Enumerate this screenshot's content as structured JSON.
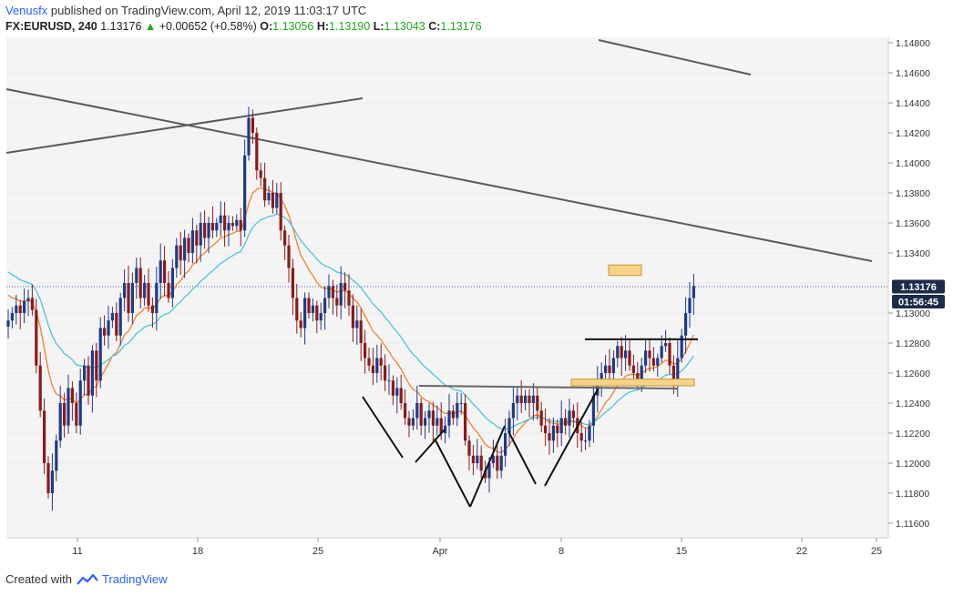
{
  "header": {
    "author": "Venusfx",
    "published_text": "published on TradingView.com, April 12, 2019 11:03:17 UTC",
    "symbol": "FX:EURUSD, 240",
    "last": "1.13176",
    "change_arrow": "▲",
    "change": "+0.00652 (+0.58%)",
    "o_label": "O:",
    "o_value": "1.13056",
    "h_label": "H:",
    "h_value": "1.13190",
    "l_label": "L:",
    "l_value": "1.13043",
    "c_label": "C:",
    "c_value": "1.13176"
  },
  "footer": {
    "created_with": "Created with",
    "brand": "TradingView",
    "logo_icon": "tradingview-logo-icon"
  },
  "price_axis": {
    "tick_labels": [
      "1.14800",
      "1.14600",
      "1.14400",
      "1.14200",
      "1.14000",
      "1.13800",
      "1.13600",
      "1.13400",
      "1.13176",
      "1.13000",
      "1.12800",
      "1.12600",
      "1.12400",
      "1.12200",
      "1.12000",
      "1.11800",
      "1.11600"
    ],
    "current_price_label": "1.13176",
    "countdown_label": "01:56:45"
  },
  "time_axis": {
    "tick_labels": [
      "11",
      "18",
      "25",
      "Apr",
      "8",
      "15",
      "22",
      "25"
    ]
  },
  "colors": {
    "up_candle": "#1e3a8a",
    "down_candle": "#8b1a1a",
    "ema_fast": "#f57f2a",
    "ema_slow": "#4fc3d9",
    "trendline": "#5a5a5a",
    "zone": "#f6d28a",
    "price_label_bg": "#1c2b4a",
    "plot_bg": "#f4f4f4"
  },
  "chart_data": {
    "type": "candlestick",
    "symbol": "EURUSD",
    "timeframe": "240",
    "ylim": [
      1.115,
      1.149
    ],
    "x_range_days": [
      "2019-03-07",
      "2019-03-26"
    ],
    "x_ticks": [
      {
        "label": "11",
        "date": "2019-03-11"
      },
      {
        "label": "18",
        "date": "2019-03-18"
      },
      {
        "label": "25",
        "date": "2019-03-25"
      },
      {
        "label": "Apr",
        "date": "2019-04-01"
      },
      {
        "label": "8",
        "date": "2019-04-08"
      },
      {
        "label": "15",
        "date": "2019-04-15"
      },
      {
        "label": "22",
        "date": "2019-04-22"
      },
      {
        "label": "25",
        "date": "2019-04-25"
      }
    ],
    "close_path": [
      [
        0,
        1.1295
      ],
      [
        1,
        1.13
      ],
      [
        2,
        1.1305
      ],
      [
        3,
        1.13
      ],
      [
        4,
        1.1308
      ],
      [
        5,
        1.131
      ],
      [
        6,
        1.1302
      ],
      [
        7,
        1.1265
      ],
      [
        8,
        1.1235
      ],
      [
        9,
        1.12
      ],
      [
        10,
        1.118
      ],
      [
        11,
        1.1195
      ],
      [
        12,
        1.1215
      ],
      [
        13,
        1.124
      ],
      [
        14,
        1.1225
      ],
      [
        15,
        1.125
      ],
      [
        16,
        1.124
      ],
      [
        17,
        1.1225
      ],
      [
        18,
        1.1255
      ],
      [
        19,
        1.1265
      ],
      [
        20,
        1.1245
      ],
      [
        21,
        1.1275
      ],
      [
        22,
        1.1255
      ],
      [
        23,
        1.129
      ],
      [
        24,
        1.1285
      ],
      [
        25,
        1.1295
      ],
      [
        26,
        1.13
      ],
      [
        27,
        1.1285
      ],
      [
        28,
        1.131
      ],
      [
        29,
        1.132
      ],
      [
        30,
        1.13
      ],
      [
        31,
        1.132
      ],
      [
        32,
        1.133
      ],
      [
        33,
        1.131
      ],
      [
        34,
        1.132
      ],
      [
        35,
        1.1305
      ],
      [
        36,
        1.13
      ],
      [
        37,
        1.132
      ],
      [
        38,
        1.1335
      ],
      [
        39,
        1.132
      ],
      [
        40,
        1.131
      ],
      [
        41,
        1.133
      ],
      [
        42,
        1.1345
      ],
      [
        43,
        1.1335
      ],
      [
        44,
        1.135
      ],
      [
        45,
        1.134
      ],
      [
        46,
        1.1355
      ],
      [
        47,
        1.1345
      ],
      [
        48,
        1.136
      ],
      [
        49,
        1.135
      ],
      [
        50,
        1.136
      ],
      [
        51,
        1.1355
      ],
      [
        52,
        1.136
      ],
      [
        53,
        1.1365
      ],
      [
        54,
        1.1355
      ],
      [
        55,
        1.136
      ],
      [
        56,
        1.1358
      ],
      [
        57,
        1.1362
      ],
      [
        58,
        1.1355
      ],
      [
        59,
        1.1405
      ],
      [
        60,
        1.143
      ],
      [
        61,
        1.142
      ],
      [
        62,
        1.1395
      ],
      [
        63,
        1.139
      ],
      [
        64,
        1.1375
      ],
      [
        65,
        1.138
      ],
      [
        66,
        1.137
      ],
      [
        67,
        1.138
      ],
      [
        68,
        1.1355
      ],
      [
        69,
        1.1345
      ],
      [
        70,
        1.133
      ],
      [
        71,
        1.131
      ],
      [
        72,
        1.1295
      ],
      [
        73,
        1.129
      ],
      [
        74,
        1.131
      ],
      [
        75,
        1.13
      ],
      [
        76,
        1.1305
      ],
      [
        77,
        1.1295
      ],
      [
        78,
        1.13
      ],
      [
        79,
        1.131
      ],
      [
        80,
        1.1318
      ],
      [
        81,
        1.131
      ],
      [
        82,
        1.1305
      ],
      [
        83,
        1.132
      ],
      [
        84,
        1.1315
      ],
      [
        85,
        1.1305
      ],
      [
        86,
        1.129
      ],
      [
        87,
        1.1295
      ],
      [
        88,
        1.128
      ],
      [
        89,
        1.127
      ],
      [
        90,
        1.1265
      ],
      [
        91,
        1.126
      ],
      [
        92,
        1.127
      ],
      [
        93,
        1.1265
      ],
      [
        94,
        1.1255
      ],
      [
        95,
        1.1255
      ],
      [
        96,
        1.1245
      ],
      [
        97,
        1.125
      ],
      [
        98,
        1.124
      ],
      [
        99,
        1.123
      ],
      [
        100,
        1.1225
      ],
      [
        101,
        1.123
      ],
      [
        102,
        1.124
      ],
      [
        103,
        1.1225
      ],
      [
        104,
        1.123
      ],
      [
        105,
        1.1235
      ],
      [
        106,
        1.1225
      ],
      [
        107,
        1.123
      ],
      [
        108,
        1.122
      ],
      [
        109,
        1.1225
      ],
      [
        110,
        1.1235
      ],
      [
        111,
        1.123
      ],
      [
        112,
        1.124
      ],
      [
        113,
        1.124
      ],
      [
        114,
        1.1215
      ],
      [
        115,
        1.1205
      ],
      [
        116,
        1.12
      ],
      [
        117,
        1.1205
      ],
      [
        118,
        1.1195
      ],
      [
        119,
        1.119
      ],
      [
        120,
        1.12
      ],
      [
        121,
        1.1205
      ],
      [
        122,
        1.1195
      ],
      [
        123,
        1.1205
      ],
      [
        124,
        1.122
      ],
      [
        125,
        1.123
      ],
      [
        126,
        1.124
      ],
      [
        127,
        1.1245
      ],
      [
        128,
        1.124
      ],
      [
        129,
        1.1245
      ],
      [
        130,
        1.124
      ],
      [
        131,
        1.1245
      ],
      [
        132,
        1.1235
      ],
      [
        133,
        1.1225
      ],
      [
        134,
        1.122
      ],
      [
        135,
        1.1215
      ],
      [
        136,
        1.1225
      ],
      [
        137,
        1.122
      ],
      [
        138,
        1.123
      ],
      [
        139,
        1.1225
      ],
      [
        140,
        1.1235
      ],
      [
        141,
        1.123
      ],
      [
        142,
        1.122
      ],
      [
        143,
        1.1215
      ],
      [
        144,
        1.1215
      ],
      [
        145,
        1.1225
      ],
      [
        146,
        1.1245
      ],
      [
        147,
        1.1255
      ],
      [
        148,
        1.126
      ],
      [
        149,
        1.1265
      ],
      [
        150,
        1.126
      ],
      [
        151,
        1.127
      ],
      [
        152,
        1.1278
      ],
      [
        153,
        1.127
      ],
      [
        154,
        1.1275
      ],
      [
        155,
        1.1265
      ],
      [
        156,
        1.126
      ],
      [
        157,
        1.1255
      ],
      [
        158,
        1.1265
      ],
      [
        159,
        1.1275
      ],
      [
        160,
        1.127
      ],
      [
        161,
        1.1265
      ],
      [
        162,
        1.127
      ],
      [
        163,
        1.1278
      ],
      [
        164,
        1.128
      ],
      [
        165,
        1.1265
      ],
      [
        166,
        1.1255
      ],
      [
        167,
        1.127
      ],
      [
        168,
        1.1285
      ],
      [
        169,
        1.13
      ],
      [
        170,
        1.131
      ],
      [
        171,
        1.1318
      ]
    ],
    "levels": {
      "resistance": 1.12825,
      "neckline": 1.1249,
      "current_price": 1.13176,
      "zone_upper": [
        1.1325,
        1.1332
      ],
      "zone_lower": [
        1.12515,
        1.1256
      ]
    }
  }
}
